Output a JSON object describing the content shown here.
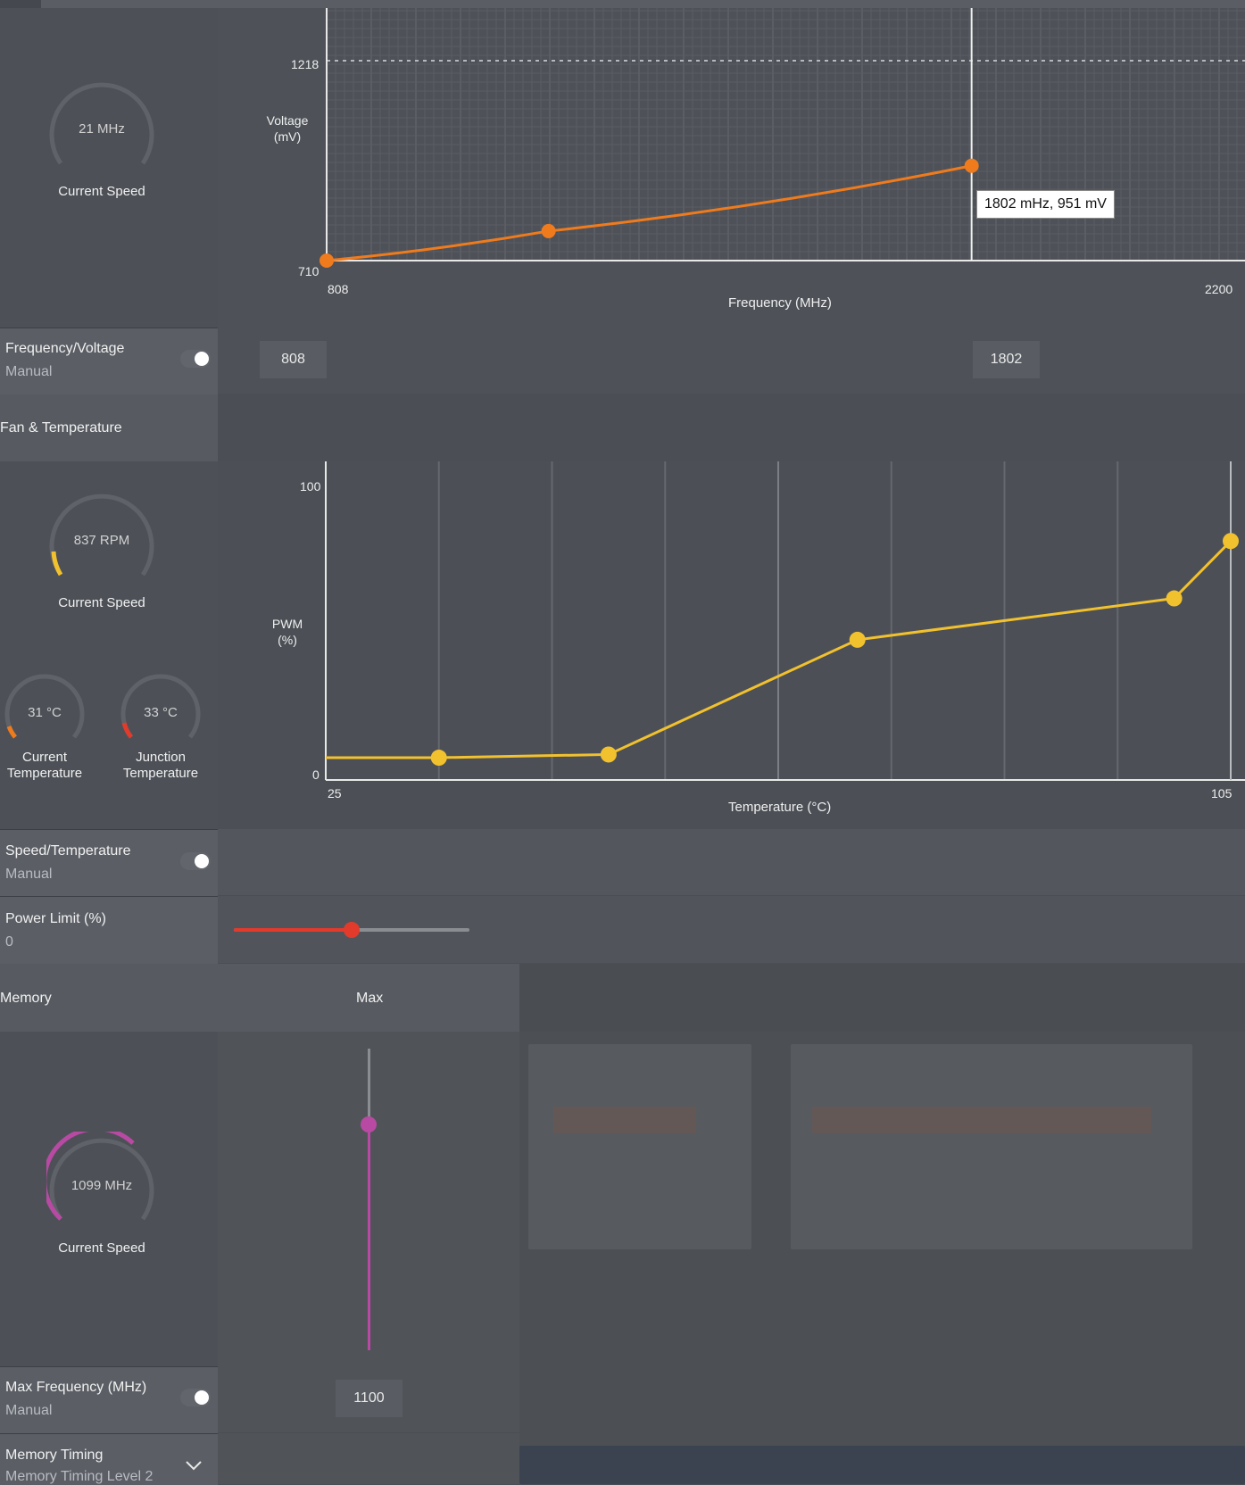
{
  "clock": {
    "gauge": {
      "value": "21 MHz",
      "label": "Current Speed"
    },
    "chart": {
      "ylabel_line1": "Voltage",
      "ylabel_line2": "(mV)",
      "xlabel": "Frequency (MHz)",
      "y_top_tick": "1218",
      "y_bottom_tick": "710",
      "x_min_tick": "808",
      "x_max_tick": "2200",
      "tooltip": "1802 mHz, 951 mV"
    },
    "freq_voltage": {
      "title": "Frequency/Voltage",
      "mode": "Manual",
      "min_value": "808",
      "max_value": "1802"
    }
  },
  "fan": {
    "section_title": "Fan & Temperature",
    "speed_gauge": {
      "value": "837 RPM",
      "label": "Current Speed"
    },
    "current_temp": {
      "value": "31 °C",
      "label_line1": "Current",
      "label_line2": "Temperature"
    },
    "junction_temp": {
      "value": "33 °C",
      "label_line1": "Junction",
      "label_line2": "Temperature"
    },
    "chart": {
      "ylabel_line1": "PWM",
      "ylabel_line2": "(%)",
      "xlabel": "Temperature (°C)",
      "y_top_tick": "100",
      "y_bottom_tick": "0",
      "x_min_tick": "25",
      "x_max_tick": "105"
    },
    "speed_temp": {
      "title": "Speed/Temperature",
      "mode": "Manual"
    },
    "power_limit": {
      "title": "Power Limit (%)",
      "value": "0",
      "fraction": 0.5
    }
  },
  "memory": {
    "section_title": "Memory",
    "max_label": "Max",
    "gauge": {
      "value": "1099 MHz",
      "label": "Current Speed"
    },
    "slider_fraction": 0.75,
    "max_frequency": {
      "title": "Max Frequency (MHz)",
      "mode": "Manual",
      "value": "1100"
    },
    "timing": {
      "title": "Memory Timing",
      "value": "Memory Timing Level 2"
    }
  },
  "chart_data": [
    {
      "type": "line",
      "xlabel": "Frequency (MHz)",
      "ylabel": "Voltage (mV)",
      "xlim": [
        808,
        2200
      ],
      "ylim": [
        710,
        1218
      ],
      "x": [
        808,
        1150,
        1802
      ],
      "y": [
        710,
        785,
        951
      ],
      "annotations": [
        "1802 mHz, 951 mV"
      ],
      "grid": true,
      "color": "#f07b1d"
    },
    {
      "type": "line",
      "xlabel": "Temperature (°C)",
      "ylabel": "PWM (%)",
      "xlim": [
        25,
        105
      ],
      "ylim": [
        0,
        100
      ],
      "x": [
        25,
        35,
        50,
        72,
        100,
        105
      ],
      "y": [
        7,
        7,
        8,
        44,
        57,
        75
      ],
      "grid": true,
      "color": "#f2c12e"
    }
  ]
}
